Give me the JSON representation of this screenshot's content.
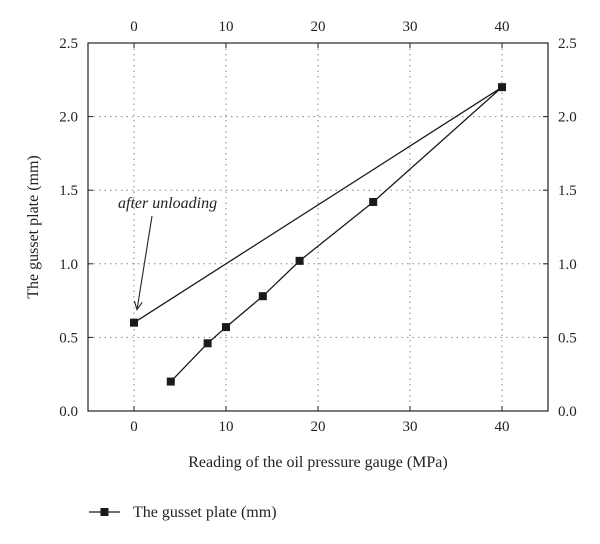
{
  "chart_data": {
    "type": "line",
    "xlabel": "Reading of the oil pressure gauge (MPa)",
    "ylabel": "The gusset plate (mm)",
    "xlim": [
      -5,
      45
    ],
    "ylim": [
      0,
      2.5
    ],
    "x_ticks": [
      "0",
      "10",
      "20",
      "30",
      "40"
    ],
    "x_tick_values": [
      0,
      10,
      20,
      30,
      40
    ],
    "y_ticks": [
      "0.0",
      "0.5",
      "1.0",
      "1.5",
      "2.0",
      "2.5"
    ],
    "y_tick_values": [
      0,
      0.5,
      1.0,
      1.5,
      2.0,
      2.5
    ],
    "top_axis_ticks": [
      "0",
      "10",
      "20",
      "30",
      "40"
    ],
    "right_axis_ticks": [
      "0.0",
      "0.5",
      "1.0",
      "1.5",
      "2.0",
      "2.5"
    ],
    "grid": true,
    "legend_position": "bottom-left",
    "series": [
      {
        "name": "The gusset plate (mm)",
        "marker": "square",
        "color": "#1a1a1a",
        "x": [
          4,
          8,
          10,
          14,
          18,
          26,
          40,
          0
        ],
        "y": [
          0.2,
          0.46,
          0.57,
          0.78,
          1.02,
          1.42,
          2.2,
          0.6
        ]
      }
    ],
    "annotations": [
      {
        "text": "after unloading",
        "target_x": 0,
        "target_y": 0.6
      }
    ]
  }
}
